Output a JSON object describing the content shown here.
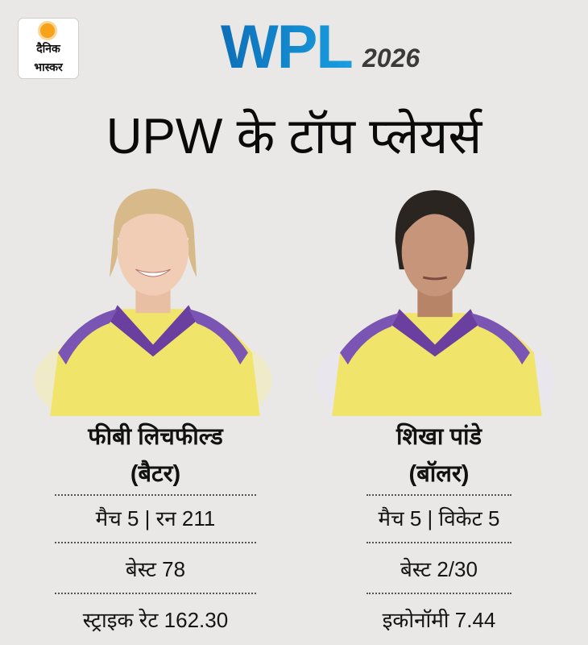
{
  "logo": {
    "line1": "दैनिक",
    "line2": "भास्कर",
    "icon": "sun-icon",
    "color": "#f7a21b"
  },
  "event": {
    "name": "WPL",
    "year": "2026",
    "color": "#0d6fb8"
  },
  "title": "UPW के टॉप प्लेयर्स",
  "players": [
    {
      "name": "फीबी लिचफील्ड",
      "role": "(बैटर)",
      "stats": [
        "मैच 5 | रन 211",
        "बेस्ट 78",
        "स्ट्राइक रेट 162.30"
      ]
    },
    {
      "name": "शिखा पांडे",
      "role": "(बॉलर)",
      "stats": [
        "मैच 5 | विकेट 5",
        "बेस्ट 2/30",
        "इकोनॉमी 7.44"
      ]
    }
  ],
  "colors": {
    "jersey": "#f1e46a",
    "collar": "#6b3fa0"
  }
}
